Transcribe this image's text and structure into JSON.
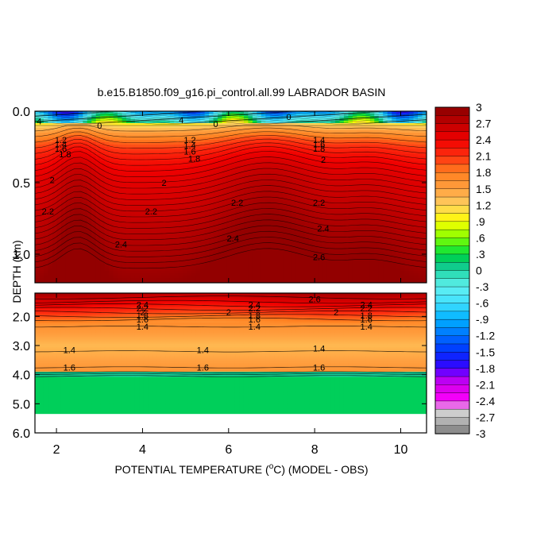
{
  "chart_data": {
    "type": "heatmap",
    "title": "b.e15.B1850.f09_g16.pi_control.all.99 LABRADOR BASIN",
    "xlabel": "POTENTIAL TEMPERATURE (",
    "xlabel_degree": "o",
    "xlabel_rest": "C) (MODEL - OBS)",
    "ylabel": "DEPTH (km)",
    "xlim": [
      1.5,
      10.6
    ],
    "x_ticks": [
      2,
      4,
      6,
      8,
      10
    ],
    "x_tick_labels": [
      "2",
      "4",
      "6",
      "8",
      "10"
    ],
    "upper_panel": {
      "ylim": [
        0.0,
        1.2
      ],
      "y_ticks": [
        0.0,
        0.5,
        1.0
      ],
      "y_tick_labels": [
        "0.0",
        "0.5",
        "1.0"
      ]
    },
    "lower_panel": {
      "ylim": [
        1.2,
        6.0
      ],
      "y_ticks": [
        2.0,
        3.0,
        4.0,
        5.0,
        6.0
      ],
      "y_tick_labels": [
        "2.0",
        "3.0",
        "4.0",
        "5.0",
        "6.0"
      ]
    },
    "colorbar": {
      "labels": [
        "3",
        "2.7",
        "2.4",
        "2.1",
        "1.8",
        "1.5",
        "1.2",
        ".9",
        ".6",
        ".3",
        "0",
        "-.3",
        "-.6",
        "-.9",
        "-1.2",
        "-1.5",
        "-1.8",
        "-2.1",
        "-2.4",
        "-2.7",
        "-3"
      ]
    },
    "contour_labels": [
      {
        "text": "2",
        "x": 1.9,
        "d": 0.48
      },
      {
        "text": "2",
        "x": 4.5,
        "d": 0.5
      },
      {
        "text": "2",
        "x": 8.2,
        "d": 0.34
      },
      {
        "text": "1.2",
        "x": 2.1,
        "d": 0.2
      },
      {
        "text": "1.4",
        "x": 2.1,
        "d": 0.23
      },
      {
        "text": "1.6",
        "x": 2.1,
        "d": 0.26
      },
      {
        "text": "1.8",
        "x": 2.2,
        "d": 0.3
      },
      {
        "text": "1.2",
        "x": 5.1,
        "d": 0.2
      },
      {
        "text": "1.4",
        "x": 5.1,
        "d": 0.24
      },
      {
        "text": "1.6",
        "x": 5.1,
        "d": 0.28
      },
      {
        "text": "1.8",
        "x": 5.2,
        "d": 0.33
      },
      {
        "text": "1.4",
        "x": 8.1,
        "d": 0.2
      },
      {
        "text": "1.6",
        "x": 8.1,
        "d": 0.23
      },
      {
        "text": "1.8",
        "x": 8.1,
        "d": 0.26
      },
      {
        "text": "2.2",
        "x": 1.8,
        "d": 0.7
      },
      {
        "text": "2.2",
        "x": 4.2,
        "d": 0.7
      },
      {
        "text": "2.2",
        "x": 6.2,
        "d": 0.64
      },
      {
        "text": "2.2",
        "x": 8.1,
        "d": 0.64
      },
      {
        "text": "2.4",
        "x": 3.5,
        "d": 0.93
      },
      {
        "text": "2.4",
        "x": 6.1,
        "d": 0.89
      },
      {
        "text": "2.4",
        "x": 8.2,
        "d": 0.82
      },
      {
        "text": "2.6",
        "x": 8.1,
        "d": 1.02
      },
      {
        "text": "4",
        "x": 1.6,
        "d": 0.07
      },
      {
        "text": "4",
        "x": 4.9,
        "d": 0.06
      },
      {
        "text": "0",
        "x": 3.0,
        "d": 0.1
      },
      {
        "text": "0",
        "x": 7.4,
        "d": 0.04
      },
      {
        "text": "0",
        "x": 5.7,
        "d": 0.09
      },
      {
        "text": "2.6",
        "x": 8.0,
        "d": 1.4
      },
      {
        "text": "2.4",
        "x": 4.0,
        "d": 1.6
      },
      {
        "text": "2.2",
        "x": 4.0,
        "d": 1.72
      },
      {
        "text": "2",
        "x": 4.0,
        "d": 1.85
      },
      {
        "text": "1.8",
        "x": 4.0,
        "d": 1.97
      },
      {
        "text": "1.6",
        "x": 4.0,
        "d": 2.1
      },
      {
        "text": "1.4",
        "x": 4.0,
        "d": 2.35
      },
      {
        "text": "2.4",
        "x": 6.6,
        "d": 1.6
      },
      {
        "text": "2.2",
        "x": 6.6,
        "d": 1.72
      },
      {
        "text": "2",
        "x": 6.0,
        "d": 1.85
      },
      {
        "text": "1.8",
        "x": 6.6,
        "d": 1.97
      },
      {
        "text": "1.6",
        "x": 6.6,
        "d": 2.1
      },
      {
        "text": "1.4",
        "x": 6.6,
        "d": 2.35
      },
      {
        "text": "2.4",
        "x": 9.2,
        "d": 1.6
      },
      {
        "text": "2.2",
        "x": 9.2,
        "d": 1.72
      },
      {
        "text": "2",
        "x": 8.5,
        "d": 1.85
      },
      {
        "text": "1.8",
        "x": 9.2,
        "d": 1.97
      },
      {
        "text": "1.6",
        "x": 9.2,
        "d": 2.1
      },
      {
        "text": "1.4",
        "x": 9.2,
        "d": 2.35
      },
      {
        "text": "1.4",
        "x": 2.3,
        "d": 3.15
      },
      {
        "text": "1.4",
        "x": 5.4,
        "d": 3.15
      },
      {
        "text": "1.4",
        "x": 8.1,
        "d": 3.1
      },
      {
        "text": "1.6",
        "x": 2.3,
        "d": 3.75
      },
      {
        "text": "1.6",
        "x": 5.4,
        "d": 3.75
      },
      {
        "text": "1.6",
        "x": 8.1,
        "d": 3.75
      }
    ]
  }
}
